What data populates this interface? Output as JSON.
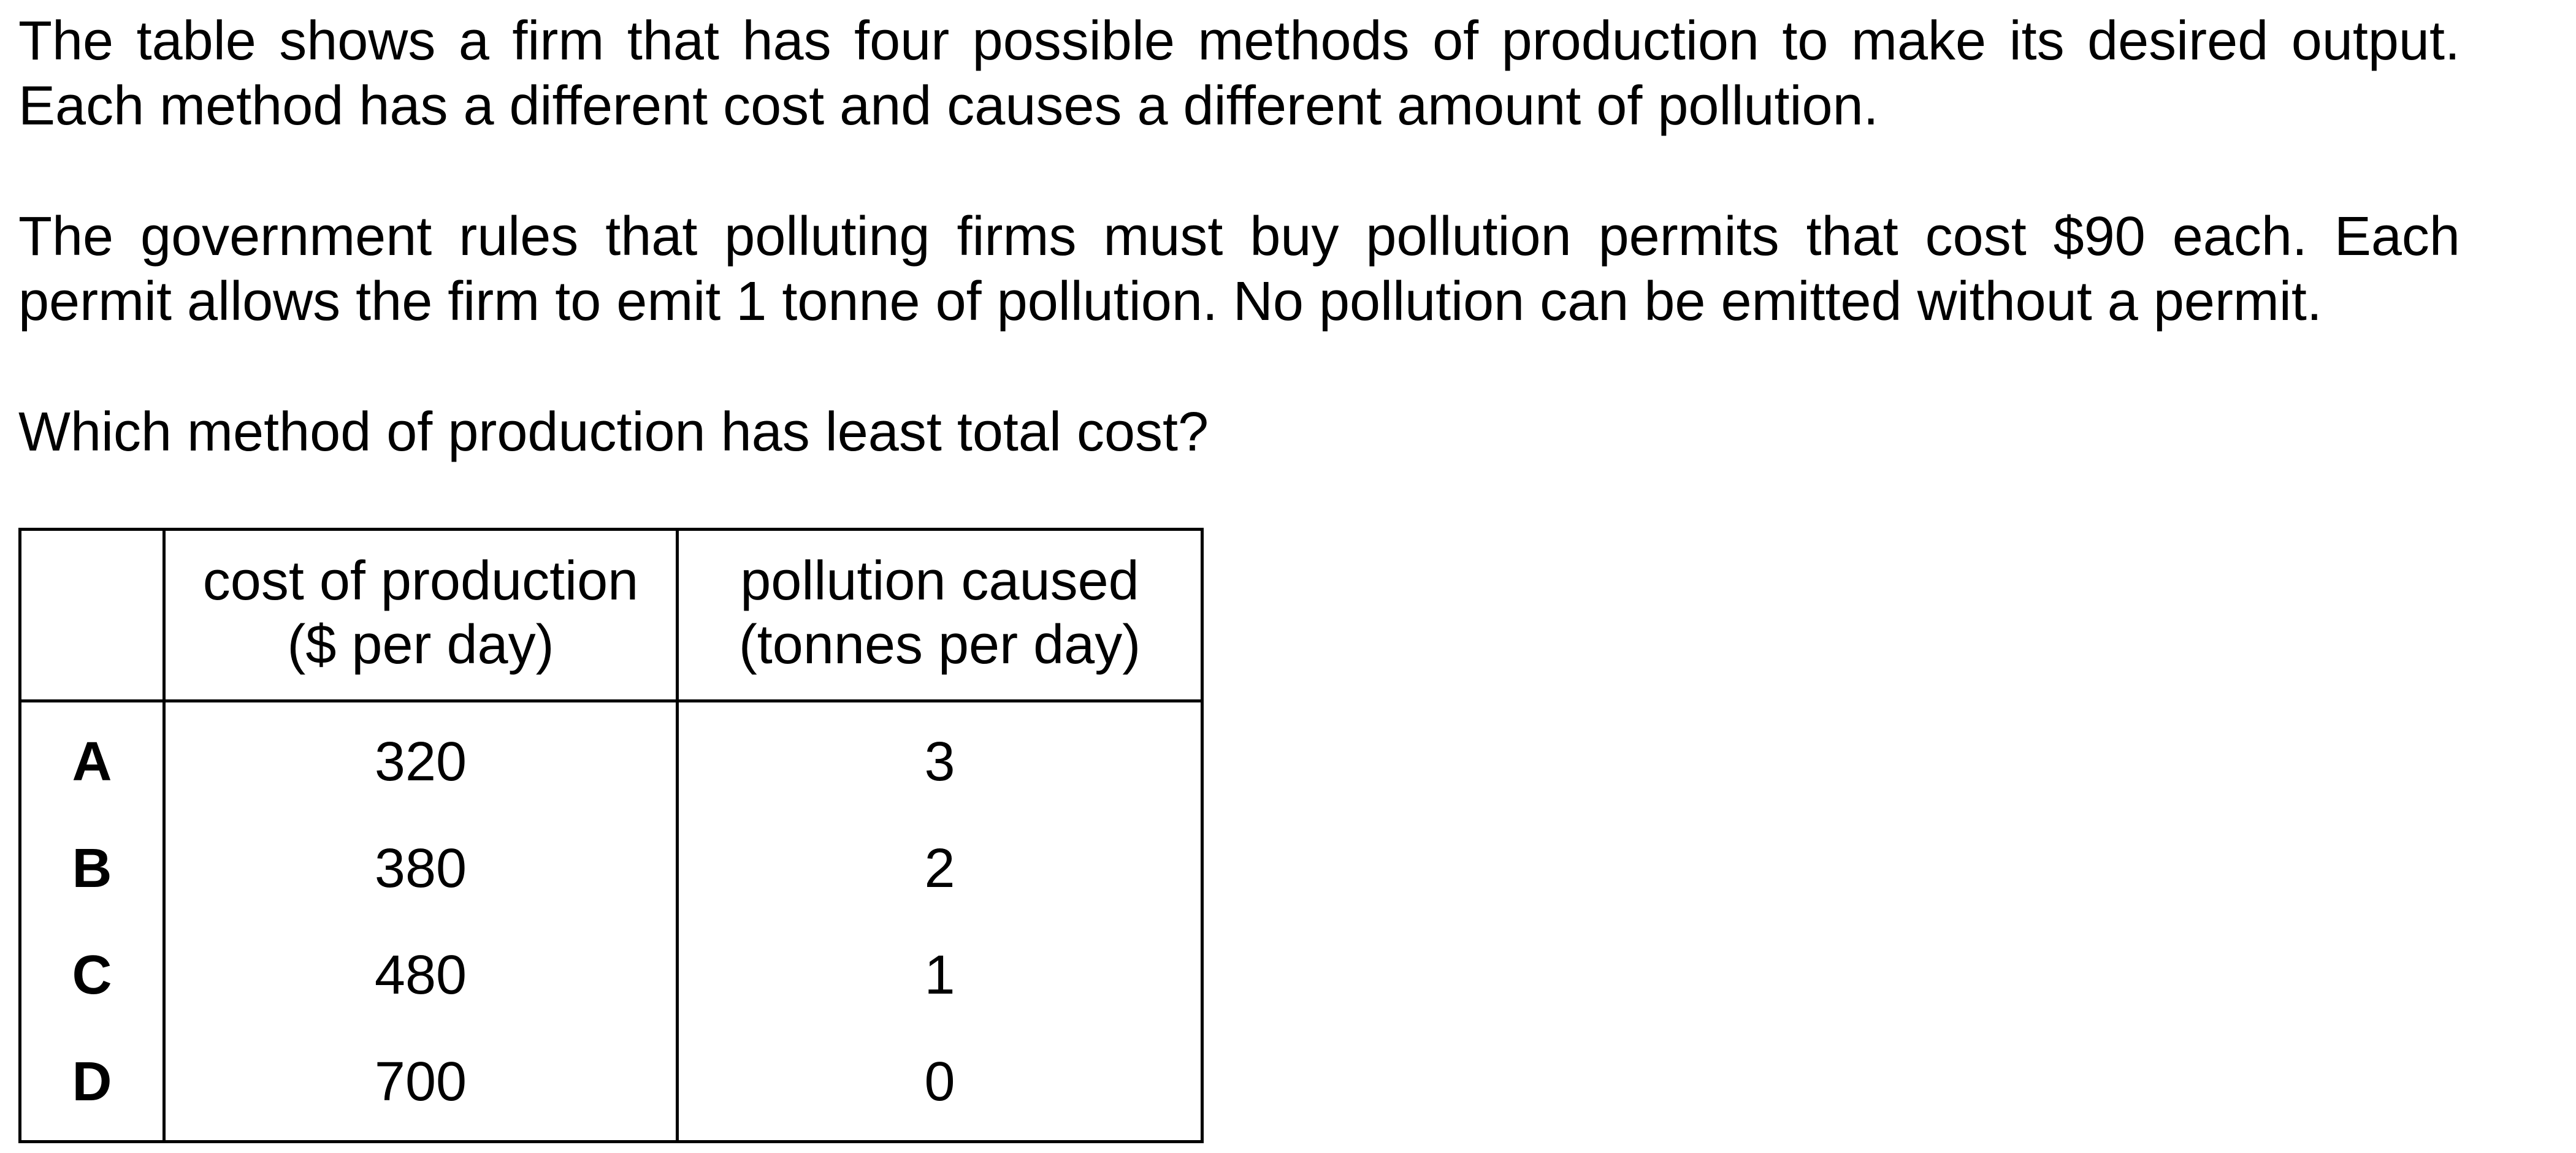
{
  "question": {
    "intro_lines": [
      "The table shows a firm that has four possible methods of production to make its desired output.",
      "Each method has a different cost and causes a different amount of pollution."
    ],
    "rule_lines": [
      "The government rules that polluting firms must buy pollution permits that cost $90 each. Each",
      "permit allows the firm to emit 1 tonne of pollution. No pollution can be emitted without a permit."
    ],
    "prompt": "Which method of production has least total cost?"
  },
  "table": {
    "headers": {
      "corner": "",
      "cost_line1": "cost of production",
      "cost_line2": "($ per day)",
      "pollution_line1": "pollution caused",
      "pollution_line2": "(tonnes per day)"
    },
    "rows": [
      {
        "label": "A",
        "cost": "320",
        "pollution": "3"
      },
      {
        "label": "B",
        "cost": "380",
        "pollution": "2"
      },
      {
        "label": "C",
        "cost": "480",
        "pollution": "1"
      },
      {
        "label": "D",
        "cost": "700",
        "pollution": "0"
      }
    ]
  }
}
